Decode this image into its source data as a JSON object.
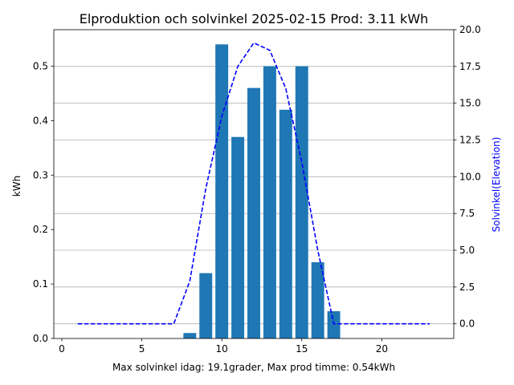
{
  "chart_data": {
    "type": "bar",
    "title": "Elproduktion och solvinkel 2025-02-15 Prod: 3.11 kWh",
    "xlabel": "Max solvinkel idag: 19.1grader, Max prod timme: 0.54kWh",
    "ylabel": "kWh",
    "ylabel_right": "Solvinkel(Elevation)",
    "xlim": [
      -0.5,
      24.5
    ],
    "ylim": [
      0,
      0.567
    ],
    "ylim_right": [
      -1.0,
      20.0
    ],
    "x_ticks": [
      0,
      5,
      10,
      15,
      20
    ],
    "y_ticks": [
      0.0,
      0.1,
      0.2,
      0.3,
      0.4,
      0.5
    ],
    "y_tick_labels": [
      "0.0",
      "0.1",
      "0.2",
      "0.3",
      "0.4",
      "0.5"
    ],
    "y_right_ticks": [
      0.0,
      2.5,
      5.0,
      7.5,
      10.0,
      12.5,
      15.0,
      17.5,
      20.0
    ],
    "y_right_tick_labels": [
      "0.0",
      "2.5",
      "5.0",
      "7.5",
      "10.0",
      "12.5",
      "15.0",
      "17.5",
      "20.0"
    ],
    "grid_right_ticks": [
      0.0,
      2.5,
      5.0,
      7.5,
      10.0,
      12.5,
      15.0,
      17.5
    ],
    "bars": {
      "x": [
        8,
        9,
        10,
        11,
        12,
        13,
        14,
        15,
        16,
        17
      ],
      "values": [
        0.01,
        0.12,
        0.54,
        0.37,
        0.46,
        0.5,
        0.42,
        0.5,
        0.14,
        0.05
      ],
      "color": "#1f77b4",
      "width": 0.8
    },
    "elevation": {
      "x": [
        1,
        2,
        3,
        4,
        5,
        6,
        7,
        8,
        9,
        10,
        11,
        12,
        13,
        14,
        15,
        16,
        17,
        18,
        19,
        20,
        21,
        22,
        23
      ],
      "values": [
        0,
        0,
        0,
        0,
        0,
        0,
        0,
        2.9,
        9.2,
        14.1,
        17.5,
        19.1,
        18.6,
        16.0,
        11.0,
        5.0,
        0,
        0,
        0,
        0,
        0,
        0,
        0
      ],
      "color": "#0000ff",
      "style": "dashed"
    },
    "grid": true
  }
}
